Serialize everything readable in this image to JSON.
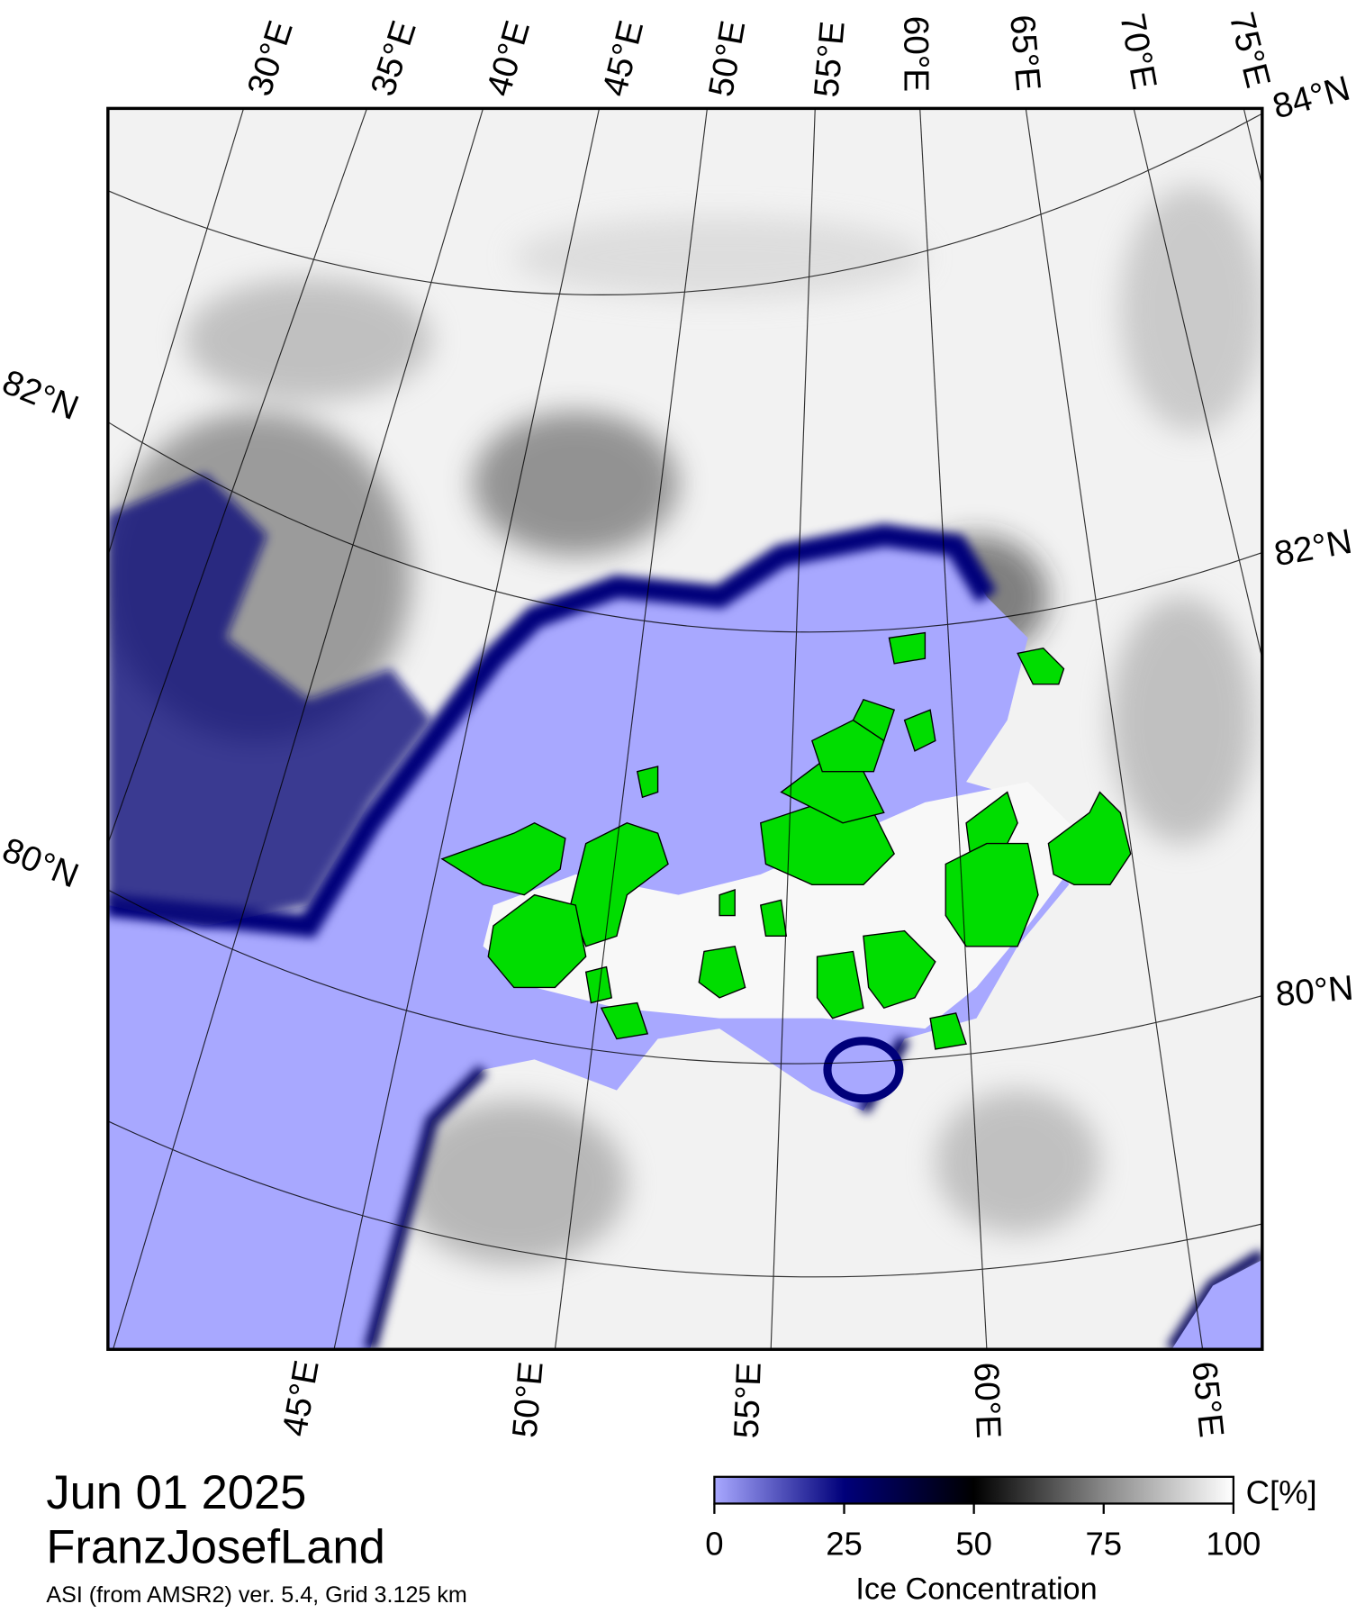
{
  "title": {
    "date": "Jun 01 2025",
    "region": "FranzJosefLand",
    "source": "ASI (from AMSR2) ver. 5.4,  Grid 3.125 km"
  },
  "map": {
    "top_lon_labels": [
      "30°E",
      "35°E",
      "40°E",
      "45°E",
      "50°E",
      "55°E",
      "60°E",
      "65°E",
      "70°E",
      "75°E"
    ],
    "right_lat_labels": [
      "84°N",
      "82°N",
      "80°N"
    ],
    "left_lat_labels": [
      "82°N",
      "80°N"
    ],
    "bottom_lon_labels": [
      "45°E",
      "50°E",
      "55°E",
      "60°E",
      "65°E"
    ]
  },
  "colorbar": {
    "unit": "C[%]",
    "label": "Ice Concentration",
    "lim": [
      0,
      100
    ],
    "ticks": [
      0,
      25,
      50,
      75,
      100
    ]
  }
}
